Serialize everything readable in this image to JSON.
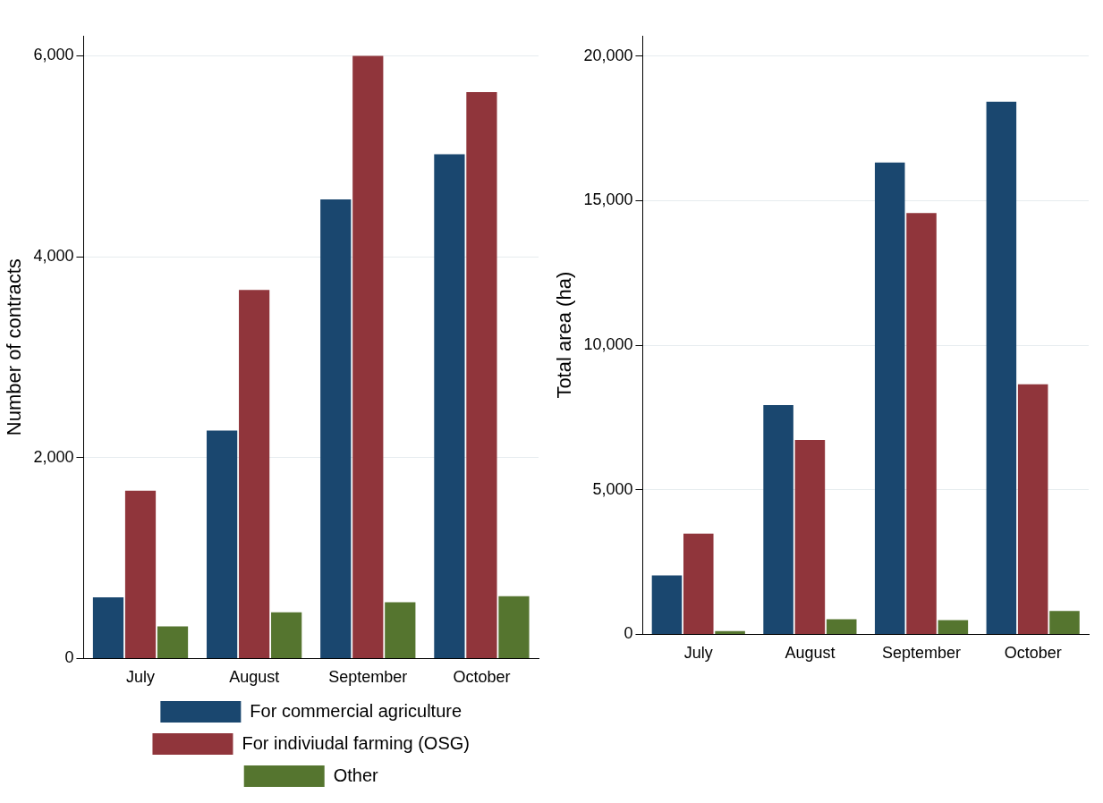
{
  "chart_data": [
    {
      "type": "bar",
      "ylabel": "Number of contracts",
      "categories": [
        "July",
        "August",
        "September",
        "October"
      ],
      "series": [
        {
          "name": "For commercial agriculture",
          "color": "#1a476f",
          "values": [
            610,
            2270,
            4570,
            5020
          ]
        },
        {
          "name": "For indiviudal farming (OSG)",
          "color": "#90353b",
          "values": [
            1670,
            3670,
            6000,
            5640
          ]
        },
        {
          "name": "Other",
          "color": "#55752f",
          "values": [
            320,
            460,
            560,
            620
          ]
        }
      ],
      "ylim": [
        0,
        6200
      ],
      "yticks": [
        {
          "value": 0,
          "label": "0"
        },
        {
          "value": 2000,
          "label": "2,000"
        },
        {
          "value": 4000,
          "label": "4,000"
        },
        {
          "value": 6000,
          "label": "6,000"
        }
      ],
      "grid": "y",
      "legend": "bottom"
    },
    {
      "type": "bar",
      "ylabel": "Total area (ha)",
      "categories": [
        "July",
        "August",
        "September",
        "October"
      ],
      "series": [
        {
          "color": "#1a476f",
          "values": [
            2040,
            7930,
            16320,
            18420
          ]
        },
        {
          "color": "#90353b",
          "values": [
            3480,
            6720,
            14570,
            8650
          ]
        },
        {
          "color": "#55752f",
          "values": [
            115,
            520,
            490,
            805
          ]
        }
      ],
      "ylim": [
        0,
        20700
      ],
      "yticks": [
        {
          "value": 0,
          "label": "0"
        },
        {
          "value": 5000,
          "label": "5,000"
        },
        {
          "value": 10000,
          "label": "10,000"
        },
        {
          "value": 15000,
          "label": "15,000"
        },
        {
          "value": 20000,
          "label": "20,000"
        }
      ],
      "grid": "y",
      "legend": false
    }
  ]
}
